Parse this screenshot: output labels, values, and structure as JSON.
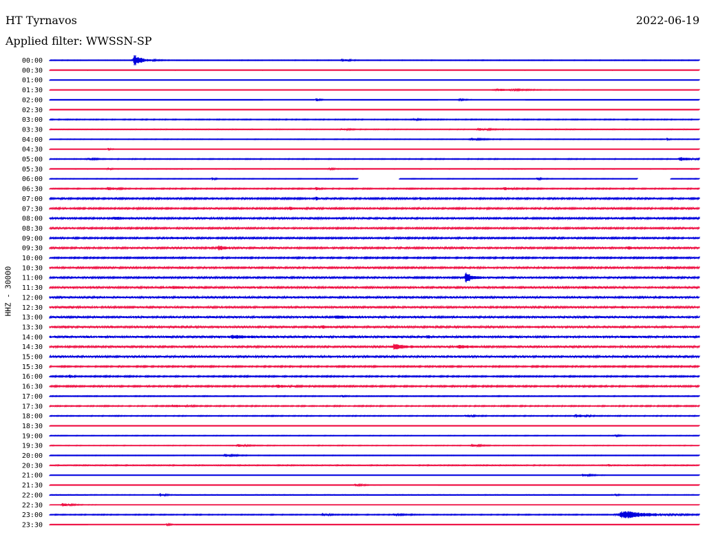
{
  "header": {
    "station": "HT Tyrnavos",
    "date": "2022-06-19",
    "filter": "Applied filter: WWSSN-SP",
    "channel_label": "HHZ - 30000"
  },
  "colors": {
    "blue": "#0000dd",
    "red": "#ee1144"
  },
  "chart_data": {
    "type": "line",
    "subtype": "helicorder",
    "title": "HT Tyrnavos",
    "ylabel": "HHZ - 30000",
    "row_minutes": 30,
    "rows": [
      {
        "label": "00:00",
        "color": "blue",
        "noise": 0.4,
        "events": [
          {
            "t": 0.13,
            "amp": 9,
            "w": 0.012
          },
          {
            "t": 0.45,
            "amp": 2,
            "w": 0.01
          }
        ]
      },
      {
        "label": "00:30",
        "color": "red",
        "noise": 0.1,
        "events": []
      },
      {
        "label": "01:00",
        "color": "blue",
        "noise": 0.2,
        "events": []
      },
      {
        "label": "01:30",
        "color": "red",
        "noise": 0.3,
        "events": [
          {
            "t": 0.69,
            "amp": 1.5,
            "w": 0.04
          }
        ]
      },
      {
        "label": "02:00",
        "color": "blue",
        "noise": 0.3,
        "events": [
          {
            "t": 0.41,
            "amp": 2.5,
            "w": 0.004
          },
          {
            "t": 0.63,
            "amp": 1.2,
            "w": 0.01
          }
        ]
      },
      {
        "label": "02:30",
        "color": "red",
        "noise": 0.2,
        "events": []
      },
      {
        "label": "03:00",
        "color": "blue",
        "noise": 0.5,
        "events": [
          {
            "t": 0.56,
            "amp": 1.5,
            "w": 0.006
          }
        ]
      },
      {
        "label": "03:30",
        "color": "red",
        "noise": 0.4,
        "events": [
          {
            "t": 0.45,
            "amp": 1.5,
            "w": 0.012
          },
          {
            "t": 0.66,
            "amp": 1.8,
            "w": 0.015
          }
        ]
      },
      {
        "label": "04:00",
        "color": "blue",
        "noise": 0.4,
        "events": [
          {
            "t": 0.65,
            "amp": 1.5,
            "w": 0.015
          },
          {
            "t": 0.95,
            "amp": 2,
            "w": 0.003
          }
        ]
      },
      {
        "label": "04:30",
        "color": "red",
        "noise": 0.3,
        "events": [
          {
            "t": 0.09,
            "amp": 1.8,
            "w": 0.004
          }
        ]
      },
      {
        "label": "05:00",
        "color": "blue",
        "noise": 0.5,
        "events": [
          {
            "t": 0.06,
            "amp": 1.2,
            "w": 0.01
          },
          {
            "t": 0.97,
            "amp": 3,
            "w": 0.015
          }
        ]
      },
      {
        "label": "05:30",
        "color": "red",
        "noise": 0.4,
        "events": [
          {
            "t": 0.09,
            "amp": 1.2,
            "w": 0.006
          },
          {
            "t": 0.43,
            "amp": 1.4,
            "w": 0.006
          }
        ]
      },
      {
        "label": "06:00",
        "color": "blue",
        "noise": 0.4,
        "events": [
          {
            "t": 0.25,
            "amp": 2,
            "w": 0.004
          },
          {
            "t": 0.75,
            "amp": 1.5,
            "w": 0.006
          }
        ],
        "gaps": [
          [
            0.475,
            0.538
          ],
          [
            0.905,
            0.955
          ]
        ]
      },
      {
        "label": "06:30",
        "color": "red",
        "noise": 0.6,
        "events": [
          {
            "t": 0.09,
            "amp": 2.5,
            "w": 0.012
          },
          {
            "t": 0.41,
            "amp": 4,
            "w": 0.004
          },
          {
            "t": 0.7,
            "amp": 1.8,
            "w": 0.015
          }
        ]
      },
      {
        "label": "07:00",
        "color": "blue",
        "noise": 0.9,
        "events": [
          {
            "t": 0.41,
            "amp": 3,
            "w": 0.004
          },
          {
            "t": 0.57,
            "amp": 2,
            "w": 0.006
          }
        ]
      },
      {
        "label": "07:30",
        "color": "red",
        "noise": 0.9,
        "events": [
          {
            "t": 0.37,
            "amp": 1.5,
            "w": 0.02
          }
        ]
      },
      {
        "label": "08:00",
        "color": "blue",
        "noise": 1.0,
        "events": [
          {
            "t": 0.1,
            "amp": 2,
            "w": 0.015
          },
          {
            "t": 0.9,
            "amp": 1.5,
            "w": 0.006
          }
        ]
      },
      {
        "label": "08:30",
        "color": "red",
        "noise": 0.9,
        "events": []
      },
      {
        "label": "09:00",
        "color": "blue",
        "noise": 0.9,
        "events": [
          {
            "t": 0.19,
            "amp": 1.2,
            "w": 0.015
          }
        ]
      },
      {
        "label": "09:30",
        "color": "red",
        "noise": 1.0,
        "events": [
          {
            "t": 0.26,
            "amp": 3,
            "w": 0.01
          },
          {
            "t": 0.89,
            "amp": 2.5,
            "w": 0.006
          }
        ]
      },
      {
        "label": "10:00",
        "color": "blue",
        "noise": 0.8,
        "events": []
      },
      {
        "label": "10:30",
        "color": "red",
        "noise": 1.0,
        "events": [
          {
            "t": 0.2,
            "amp": 1.5,
            "w": 0.004
          },
          {
            "t": 0.95,
            "amp": 2.5,
            "w": 0.006
          }
        ]
      },
      {
        "label": "11:00",
        "color": "blue",
        "noise": 1.0,
        "events": [
          {
            "t": 0.64,
            "amp": 7,
            "w": 0.01
          }
        ]
      },
      {
        "label": "11:30",
        "color": "red",
        "noise": 1.1,
        "events": [
          {
            "t": 0.19,
            "amp": 1.5,
            "w": 0.015
          },
          {
            "t": 0.82,
            "amp": 1.5,
            "w": 0.015
          }
        ]
      },
      {
        "label": "12:00",
        "color": "blue",
        "noise": 1.2,
        "events": []
      },
      {
        "label": "12:30",
        "color": "red",
        "noise": 1.1,
        "events": [
          {
            "t": 0.88,
            "amp": 1.5,
            "w": 0.004
          }
        ]
      },
      {
        "label": "13:00",
        "color": "blue",
        "noise": 1.1,
        "events": [
          {
            "t": 0.44,
            "amp": 2,
            "w": 0.015
          }
        ]
      },
      {
        "label": "13:30",
        "color": "red",
        "noise": 1.2,
        "events": [
          {
            "t": 0.42,
            "amp": 2,
            "w": 0.006
          }
        ]
      },
      {
        "label": "14:00",
        "color": "blue",
        "noise": 1.2,
        "events": [
          {
            "t": 0.28,
            "amp": 2,
            "w": 0.02
          },
          {
            "t": 0.58,
            "amp": 2,
            "w": 0.004
          }
        ]
      },
      {
        "label": "14:30",
        "color": "red",
        "noise": 1.1,
        "events": [
          {
            "t": 0.53,
            "amp": 4,
            "w": 0.015
          },
          {
            "t": 0.63,
            "amp": 2.5,
            "w": 0.015
          }
        ]
      },
      {
        "label": "15:00",
        "color": "blue",
        "noise": 1.2,
        "events": []
      },
      {
        "label": "15:30",
        "color": "red",
        "noise": 0.8,
        "events": []
      },
      {
        "label": "16:00",
        "color": "blue",
        "noise": 0.7,
        "events": [
          {
            "t": 0.03,
            "amp": 2.5,
            "w": 0.004
          }
        ]
      },
      {
        "label": "16:30",
        "color": "red",
        "noise": 0.8,
        "events": [
          {
            "t": 0.35,
            "amp": 2,
            "w": 0.012
          }
        ]
      },
      {
        "label": "17:00",
        "color": "blue",
        "noise": 0.5,
        "events": [
          {
            "t": 0.45,
            "amp": 1.2,
            "w": 0.005
          }
        ]
      },
      {
        "label": "17:30",
        "color": "red",
        "noise": 0.6,
        "events": [
          {
            "t": 0.19,
            "amp": 1.5,
            "w": 0.02
          }
        ]
      },
      {
        "label": "18:00",
        "color": "blue",
        "noise": 0.5,
        "events": [
          {
            "t": 0.64,
            "amp": 2,
            "w": 0.01
          },
          {
            "t": 0.81,
            "amp": 2.5,
            "w": 0.012
          }
        ]
      },
      {
        "label": "18:30",
        "color": "red",
        "noise": 0.3,
        "events": []
      },
      {
        "label": "19:00",
        "color": "blue",
        "noise": 0.4,
        "events": [
          {
            "t": 0.87,
            "amp": 2.5,
            "w": 0.004
          }
        ]
      },
      {
        "label": "19:30",
        "color": "red",
        "noise": 0.4,
        "events": [
          {
            "t": 0.29,
            "amp": 2,
            "w": 0.012
          },
          {
            "t": 0.65,
            "amp": 1.8,
            "w": 0.012
          }
        ]
      },
      {
        "label": "20:00",
        "color": "blue",
        "noise": 0.4,
        "events": [
          {
            "t": 0.27,
            "amp": 2,
            "w": 0.012
          }
        ]
      },
      {
        "label": "20:30",
        "color": "red",
        "noise": 0.5,
        "events": [
          {
            "t": 0.86,
            "amp": 2.5,
            "w": 0.003
          }
        ]
      },
      {
        "label": "21:00",
        "color": "blue",
        "noise": 0.3,
        "events": [
          {
            "t": 0.82,
            "amp": 2,
            "w": 0.012
          }
        ]
      },
      {
        "label": "21:30",
        "color": "red",
        "noise": 0.3,
        "events": [
          {
            "t": 0.47,
            "amp": 1.5,
            "w": 0.012
          }
        ]
      },
      {
        "label": "22:00",
        "color": "blue",
        "noise": 0.4,
        "events": [
          {
            "t": 0.17,
            "amp": 2.5,
            "w": 0.006
          },
          {
            "t": 0.87,
            "amp": 2,
            "w": 0.004
          }
        ]
      },
      {
        "label": "22:30",
        "color": "red",
        "noise": 0.3,
        "events": [
          {
            "t": 0.02,
            "amp": 2.5,
            "w": 0.012
          }
        ]
      },
      {
        "label": "23:00",
        "color": "blue",
        "noise": 0.5,
        "events": [
          {
            "t": 0.88,
            "amp": 6,
            "w": 0.04
          },
          {
            "t": 0.42,
            "amp": 1.5,
            "w": 0.01
          },
          {
            "t": 0.53,
            "amp": 1.5,
            "w": 0.01
          }
        ]
      },
      {
        "label": "23:30",
        "color": "red",
        "noise": 0.3,
        "events": [
          {
            "t": 0.18,
            "amp": 1.5,
            "w": 0.006
          }
        ]
      }
    ]
  }
}
